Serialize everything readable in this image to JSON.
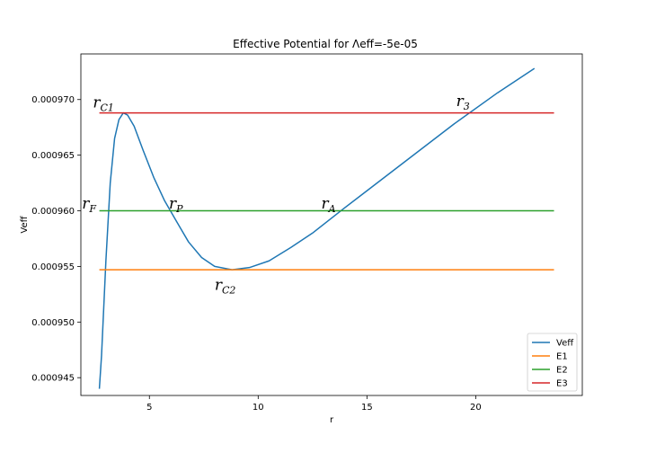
{
  "chart_data": {
    "type": "line",
    "title": "Effective Potential for Λeff=-5e-05",
    "xlabel": "r",
    "ylabel": "Veff",
    "xlim": [
      1.85,
      24.9
    ],
    "ylim": [
      0.0009434,
      0.0009741
    ],
    "xticks": [
      5,
      10,
      15,
      20
    ],
    "yticks": [
      0.000945,
      0.00095,
      0.000955,
      0.00096,
      0.000965,
      0.00097
    ],
    "ytick_labels": [
      "0.000945",
      "0.000950",
      "0.000955",
      "0.000960",
      "0.000965",
      "0.000970"
    ],
    "grid": false,
    "legend_position": "lower-right",
    "series": [
      {
        "name": "Veff",
        "color": "#1f77b4",
        "points": [
          [
            2.7,
            0.000944
          ],
          [
            2.8,
            0.000947
          ],
          [
            3.0,
            0.0009555
          ],
          [
            3.2,
            0.0009625
          ],
          [
            3.4,
            0.0009665
          ],
          [
            3.6,
            0.0009682
          ],
          [
            3.8,
            0.0009688
          ],
          [
            4.0,
            0.0009686
          ],
          [
            4.3,
            0.0009676
          ],
          [
            4.7,
            0.0009655
          ],
          [
            5.2,
            0.000963
          ],
          [
            5.7,
            0.0009609
          ],
          [
            6.2,
            0.0009592
          ],
          [
            6.8,
            0.0009572
          ],
          [
            7.4,
            0.0009558
          ],
          [
            8.0,
            0.000955
          ],
          [
            8.8,
            0.0009547
          ],
          [
            9.6,
            0.0009549
          ],
          [
            10.5,
            0.0009555
          ],
          [
            11.5,
            0.0009567
          ],
          [
            12.5,
            0.000958
          ],
          [
            13.8,
            0.00096
          ],
          [
            15.0,
            0.0009618
          ],
          [
            17.0,
            0.0009648
          ],
          [
            19.0,
            0.0009678
          ],
          [
            21.0,
            0.0009706
          ],
          [
            22.7,
            0.0009728
          ]
        ]
      },
      {
        "name": "E1",
        "color": "#ff7f0e",
        "y": 0.0009547,
        "x": [
          2.7,
          23.6
        ]
      },
      {
        "name": "E2",
        "color": "#2ca02c",
        "y": 0.00096,
        "x": [
          2.7,
          23.6
        ]
      },
      {
        "name": "E3",
        "color": "#d62728",
        "y": 0.0009688,
        "x": [
          2.7,
          23.6
        ]
      }
    ],
    "annotations": [
      {
        "base": "r",
        "sub": "C1",
        "x": 2.4,
        "y": 0.0009693
      },
      {
        "base": "r",
        "sub": "F",
        "x": 1.9,
        "y": 0.0009602
      },
      {
        "base": "r",
        "sub": "P",
        "x": 5.9,
        "y": 0.0009602
      },
      {
        "base": "r",
        "sub": "A",
        "x": 12.9,
        "y": 0.0009602
      },
      {
        "base": "r",
        "sub": "C2",
        "x": 8.0,
        "y": 0.0009529
      },
      {
        "base": "r",
        "sub": "3",
        "x": 19.1,
        "y": 0.0009694
      }
    ]
  }
}
